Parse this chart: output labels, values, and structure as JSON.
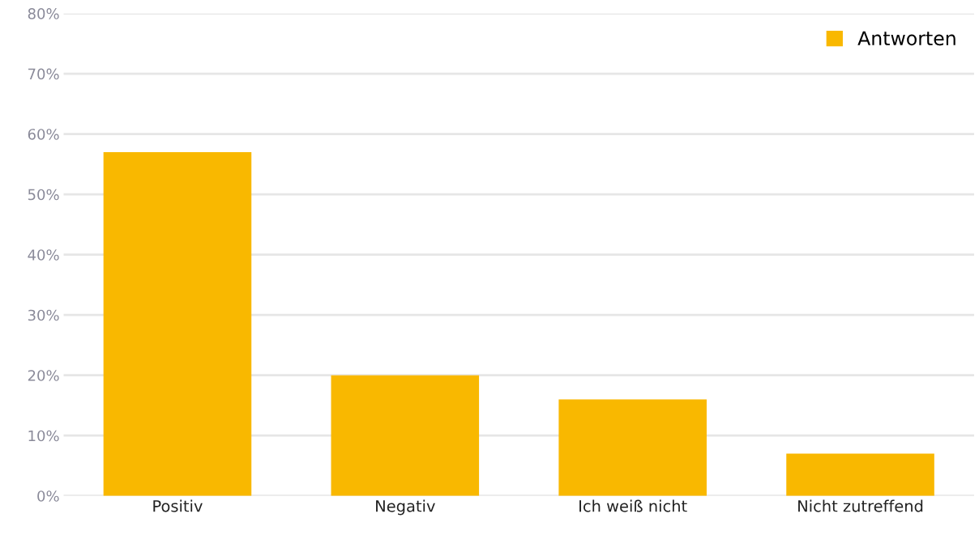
{
  "chart_data": {
    "type": "bar",
    "categories": [
      "Positiv",
      "Negativ",
      "Ich weiß nicht",
      "Nicht zutreffend"
    ],
    "series": [
      {
        "name": "Antworten",
        "color": "#f9b800",
        "values": [
          57,
          20,
          16,
          7
        ]
      }
    ],
    "ylim": [
      0,
      80
    ],
    "yticks": [
      {
        "value": 0,
        "label": "0%"
      },
      {
        "value": 10,
        "label": "10%"
      },
      {
        "value": 20,
        "label": "20%"
      },
      {
        "value": 30,
        "label": "30%"
      },
      {
        "value": 40,
        "label": "40%"
      },
      {
        "value": 50,
        "label": "50%"
      },
      {
        "value": 60,
        "label": "60%"
      },
      {
        "value": 70,
        "label": "70%"
      },
      {
        "value": 80,
        "label": "80%"
      }
    ],
    "grid": "y",
    "legend": "top right"
  }
}
